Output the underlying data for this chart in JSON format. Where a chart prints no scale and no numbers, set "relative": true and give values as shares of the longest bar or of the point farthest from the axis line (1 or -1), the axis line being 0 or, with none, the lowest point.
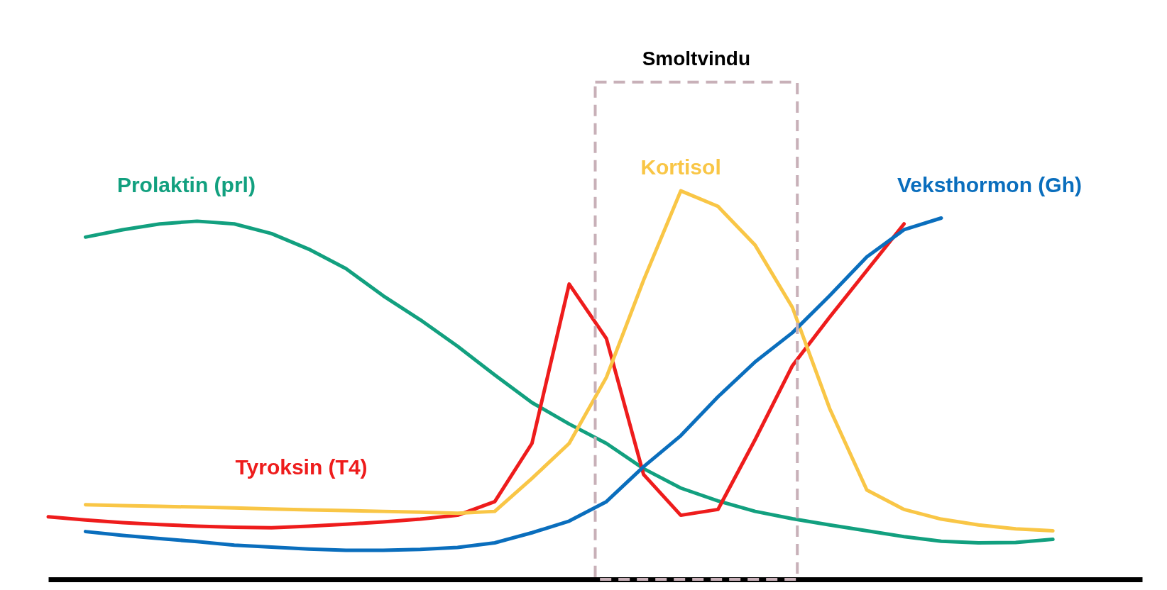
{
  "chart_data": {
    "type": "line",
    "relative": true,
    "tick_labels": false,
    "line_style": "solid",
    "marker": "none",
    "categories": [
      null,
      null,
      null,
      null,
      null,
      null,
      null,
      null,
      null,
      null,
      null,
      null,
      null,
      null,
      null,
      null,
      null,
      null,
      null,
      null,
      null,
      null,
      null,
      null,
      null,
      null,
      null,
      null,
      null
    ],
    "series": [
      {
        "name": "Prolaktin (prl)",
        "color": "#12a07f",
        "values": [
          null,
          0.881,
          0.9,
          0.915,
          0.922,
          0.915,
          0.89,
          0.85,
          0.8,
          0.73,
          0.668,
          0.6,
          0.526,
          0.455,
          0.4,
          0.35,
          0.285,
          0.235,
          0.202,
          0.175,
          0.156,
          0.14,
          0.125,
          0.11,
          0.098,
          0.094,
          0.095,
          0.103,
          null
        ]
      },
      {
        "name": "Tyroksin (T4)",
        "color": "#ee1c1c",
        "values": [
          0.161,
          0.153,
          0.146,
          0.141,
          0.137,
          0.134,
          0.133,
          0.137,
          0.142,
          0.148,
          0.155,
          0.165,
          0.2,
          0.35,
          0.76,
          0.62,
          0.27,
          0.165,
          0.18,
          0.36,
          0.55,
          0.675,
          0.795,
          0.915,
          null,
          null,
          null,
          null,
          null
        ]
      },
      {
        "name": "Kortisol",
        "color": "#f9c646",
        "values": [
          null,
          0.192,
          0.19,
          0.188,
          0.186,
          0.184,
          0.181,
          0.179,
          0.177,
          0.175,
          0.173,
          0.17,
          0.175,
          0.26,
          0.35,
          0.52,
          0.77,
          1.0,
          0.96,
          0.86,
          0.7,
          0.44,
          0.23,
          0.18,
          0.155,
          0.14,
          0.13,
          0.125,
          null
        ]
      },
      {
        "name": "Veksthormon (Gh)",
        "color": "#0a6ebd",
        "values": [
          null,
          0.123,
          0.113,
          0.105,
          0.097,
          0.088,
          0.083,
          0.078,
          0.075,
          0.075,
          0.077,
          0.082,
          0.094,
          0.12,
          0.15,
          0.2,
          0.29,
          0.37,
          0.47,
          0.56,
          0.635,
          0.73,
          0.83,
          0.9,
          0.93,
          null,
          null,
          null,
          null
        ]
      }
    ],
    "annotations": [
      "Smoltvindu"
    ]
  }
}
